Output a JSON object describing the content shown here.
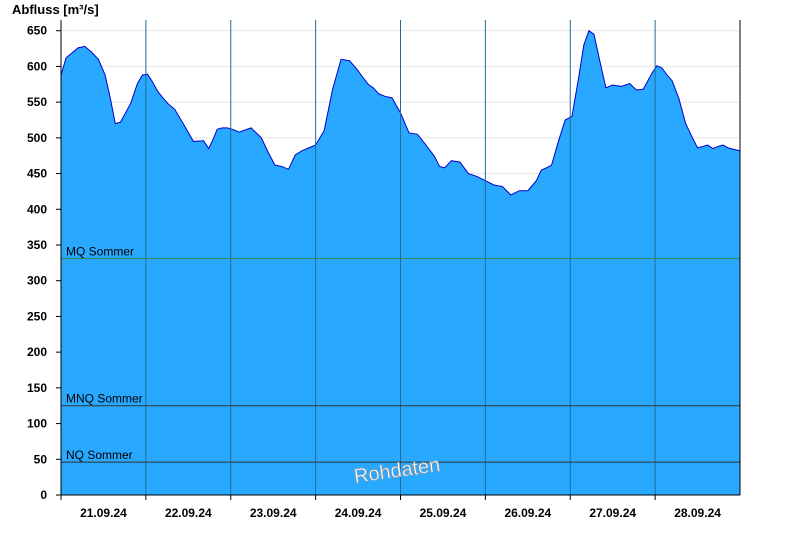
{
  "chart_data": {
    "type": "area",
    "ylabel": "Abfluss [m³/s]",
    "xlabel": "",
    "ylim": [
      0,
      665
    ],
    "xlim": [
      0,
      8
    ],
    "grid": true,
    "yticks": [
      0,
      50,
      100,
      150,
      200,
      250,
      300,
      350,
      400,
      450,
      500,
      550,
      600,
      650
    ],
    "day_labels": [
      "21.09.24",
      "22.09.24",
      "23.09.24",
      "24.09.24",
      "25.09.24",
      "26.09.24",
      "27.09.24",
      "28.09.24"
    ],
    "series": [
      {
        "x": [
          0,
          0.06,
          0.12,
          0.2,
          0.28,
          0.36,
          0.44,
          0.52,
          0.58,
          0.64,
          0.7,
          0.76,
          0.82,
          0.9,
          0.96,
          1.02,
          1.08,
          1.14,
          1.2,
          1.26,
          1.34,
          1.44,
          1.56,
          1.68,
          1.74,
          1.8,
          1.84,
          1.9,
          1.96,
          2.02,
          2.1,
          2.24,
          2.36,
          2.44,
          2.52,
          2.6,
          2.68,
          2.76,
          2.84,
          2.92,
          3.0,
          3.1,
          3.2,
          3.3,
          3.4,
          3.5,
          3.56,
          3.62,
          3.68,
          3.74,
          3.82,
          3.9,
          4.0,
          4.1,
          4.2,
          4.3,
          4.4,
          4.46,
          4.52,
          4.6,
          4.7,
          4.8,
          4.9,
          5.0,
          5.1,
          5.2,
          5.3,
          5.4,
          5.5,
          5.6,
          5.66,
          5.72,
          5.78,
          5.86,
          5.94,
          6.02,
          6.1,
          6.16,
          6.22,
          6.28,
          6.34,
          6.42,
          6.5,
          6.6,
          6.7,
          6.78,
          6.86,
          6.96,
          7.02,
          7.08,
          7.14,
          7.2,
          7.28,
          7.36,
          7.44,
          7.5,
          7.56,
          7.62,
          7.68,
          7.74,
          7.8,
          7.86,
          7.92,
          8.0
        ],
        "values": [
          588,
          612,
          618,
          626,
          628,
          620,
          610,
          588,
          556,
          520,
          522,
          535,
          548,
          576,
          588,
          589,
          578,
          565,
          556,
          548,
          540,
          520,
          495,
          496,
          485,
          500,
          512,
          514,
          514,
          512,
          508,
          514,
          500,
          480,
          462,
          460,
          456,
          476,
          482,
          486,
          490,
          510,
          568,
          610,
          608,
          594,
          584,
          575,
          570,
          562,
          558,
          556,
          535,
          507,
          505,
          490,
          474,
          460,
          458,
          468,
          466,
          450,
          446,
          440,
          434,
          432,
          420,
          426,
          426,
          440,
          455,
          458,
          462,
          495,
          525,
          530,
          585,
          630,
          650,
          645,
          612,
          570,
          574,
          572,
          576,
          567,
          568,
          590,
          601,
          598,
          588,
          580,
          555,
          520,
          500,
          486,
          488,
          490,
          485,
          488,
          490,
          486,
          484,
          482
        ]
      }
    ],
    "reference_lines": [
      {
        "label": "MQ Sommer",
        "value": 331,
        "color": "#2e8b57"
      },
      {
        "label": "MNQ Sommer",
        "value": 125,
        "color": "#333333"
      },
      {
        "label": "NQ Sommer",
        "value": 46,
        "color": "#333333"
      }
    ],
    "watermark": "Rohdaten",
    "colors": {
      "fill": "#29a8ff",
      "line": "#0000cc",
      "day_lines": "#1f6d9c",
      "grid": "#e6e6e6"
    }
  }
}
